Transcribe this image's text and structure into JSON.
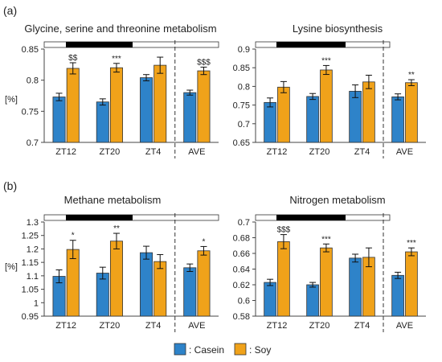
{
  "panel_labels": [
    "(a)",
    "(b)"
  ],
  "colors": {
    "casein": "#2e83c9",
    "soy": "#f0a21a",
    "axis": "#444444"
  },
  "legend": {
    "items": [
      {
        "key": "casein",
        "label": ": Casein"
      },
      {
        "key": "soy",
        "label": ": Soy"
      }
    ]
  },
  "chart_data": [
    {
      "type": "bar",
      "title": "Glycine, serine and threonine metabolism",
      "ylabel": "[%]",
      "ylim": [
        0.7,
        0.85
      ],
      "yticks": [
        "0.7",
        "0.75",
        "0.8",
        "0.85"
      ],
      "categories": [
        "ZT12",
        "ZT20",
        "ZT4",
        "AVE"
      ],
      "series": [
        {
          "name": "Casein",
          "values": [
            0.773,
            0.765,
            0.804,
            0.78
          ],
          "errors": [
            0.006,
            0.005,
            0.005,
            0.004
          ]
        },
        {
          "name": "Soy",
          "values": [
            0.819,
            0.82,
            0.824,
            0.815
          ],
          "errors": [
            0.009,
            0.007,
            0.013,
            0.006
          ]
        }
      ],
      "annotations": [
        "$$",
        "***",
        "",
        "$$$"
      ]
    },
    {
      "type": "bar",
      "title": "Lysine biosynthesis",
      "ylabel": "",
      "ylim": [
        0.65,
        0.9
      ],
      "yticks": [
        "0.65",
        "0.7",
        "0.75",
        "0.8",
        "0.85",
        "0.9"
      ],
      "categories": [
        "ZT12",
        "ZT20",
        "ZT4",
        "AVE"
      ],
      "series": [
        {
          "name": "Casein",
          "values": [
            0.757,
            0.773,
            0.787,
            0.772
          ],
          "errors": [
            0.012,
            0.008,
            0.017,
            0.008
          ]
        },
        {
          "name": "Soy",
          "values": [
            0.798,
            0.844,
            0.812,
            0.81
          ],
          "errors": [
            0.015,
            0.012,
            0.018,
            0.008
          ]
        }
      ],
      "annotations": [
        "",
        "***",
        "",
        "**"
      ]
    },
    {
      "type": "bar",
      "title": "Methane metabolism",
      "ylabel": "[%]",
      "ylim": [
        0.95,
        1.3
      ],
      "yticks": [
        "0.95",
        "1",
        "1.05",
        "1.1",
        "1.15",
        "1.2",
        "1.25",
        "1.3"
      ],
      "categories": [
        "ZT12",
        "ZT20",
        "ZT4",
        "AVE"
      ],
      "series": [
        {
          "name": "Casein",
          "values": [
            1.098,
            1.11,
            1.186,
            1.13
          ],
          "errors": [
            0.024,
            0.022,
            0.024,
            0.014
          ]
        },
        {
          "name": "Soy",
          "values": [
            1.198,
            1.229,
            1.153,
            1.193
          ],
          "errors": [
            0.034,
            0.029,
            0.026,
            0.016
          ]
        }
      ],
      "annotations": [
        "*",
        "**",
        "",
        "*"
      ]
    },
    {
      "type": "bar",
      "title": "Nitrogen metabolism",
      "ylabel": "",
      "ylim": [
        0.58,
        0.7
      ],
      "yticks": [
        "0.58",
        "0.6",
        "0.62",
        "0.64",
        "0.66",
        "0.68",
        "0.7"
      ],
      "categories": [
        "ZT12",
        "ZT20",
        "ZT4",
        "AVE"
      ],
      "series": [
        {
          "name": "Casein",
          "values": [
            0.623,
            0.62,
            0.654,
            0.632
          ],
          "errors": [
            0.004,
            0.003,
            0.005,
            0.004
          ]
        },
        {
          "name": "Soy",
          "values": [
            0.675,
            0.667,
            0.655,
            0.662
          ],
          "errors": [
            0.009,
            0.005,
            0.012,
            0.005
          ]
        }
      ],
      "annotations": [
        "$$$",
        "***",
        "",
        "***"
      ]
    }
  ]
}
